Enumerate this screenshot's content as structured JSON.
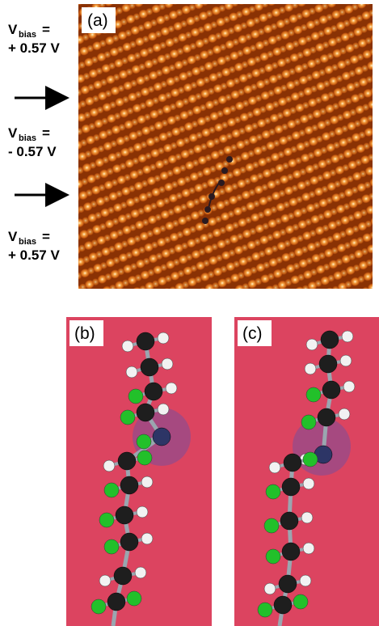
{
  "panel_a": {
    "label": "(a)",
    "bias_labels": [
      {
        "symbol": "V",
        "subscript": "bias",
        "equals": "=",
        "value": "+ 0.57 V"
      },
      {
        "symbol": "V",
        "subscript": "bias",
        "equals": "=",
        "value": "- 0.57 V"
      },
      {
        "symbol": "V",
        "subscript": "bias",
        "equals": "=",
        "value": "+ 0.57 V"
      }
    ]
  },
  "panel_b": {
    "label": "(b)"
  },
  "panel_c": {
    "label": "(c)"
  }
}
